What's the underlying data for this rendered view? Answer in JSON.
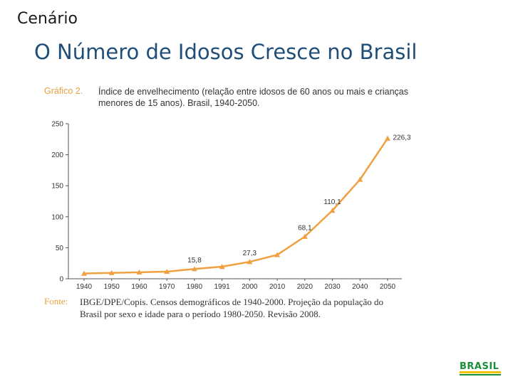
{
  "header": {
    "section": "Cenário",
    "title": "O Número de Idosos Cresce no Brasil"
  },
  "figure": {
    "label": "Gráfico 2.",
    "caption": "Índice de envelhecimento (relação entre idosos de 60 anos ou mais e crianças menores de 15 anos). Brasil, 1940-2050.",
    "source_label": "Fonte:",
    "source_text": "IBGE/DPE/Copis. Censos demográficos de 1940-2000. Projeção da população do Brasil por sexo e idade para o período 1980-2050. Revisão 2008."
  },
  "logo": {
    "text": "BRASIL"
  },
  "colors": {
    "series": "#f0a040",
    "axis": "#555555",
    "text": "#333333",
    "title": "#1f4e79"
  },
  "chart_data": {
    "type": "line",
    "categories": [
      "1940",
      "1950",
      "1960",
      "1970",
      "1980",
      "1991",
      "2000",
      "2010",
      "2020",
      "2030",
      "2040",
      "2050"
    ],
    "series": [
      {
        "values": [
          8.5,
          9.5,
          10.5,
          11.5,
          15.8,
          19.5,
          27.3,
          38.5,
          68.1,
          110.1,
          160,
          226.3
        ]
      }
    ],
    "data_labels": [
      {
        "category": "1980",
        "text": "15,8"
      },
      {
        "category": "2000",
        "text": "27,3"
      },
      {
        "category": "2020",
        "text": "68,1"
      },
      {
        "category": "2030",
        "text": "110,1"
      },
      {
        "category": "2050",
        "text": "226,3"
      }
    ],
    "ylim": [
      0,
      250
    ],
    "yticks": [
      "0",
      "50",
      "100",
      "150",
      "200",
      "250"
    ],
    "marker": "triangle",
    "grid": false,
    "legend": "none"
  }
}
